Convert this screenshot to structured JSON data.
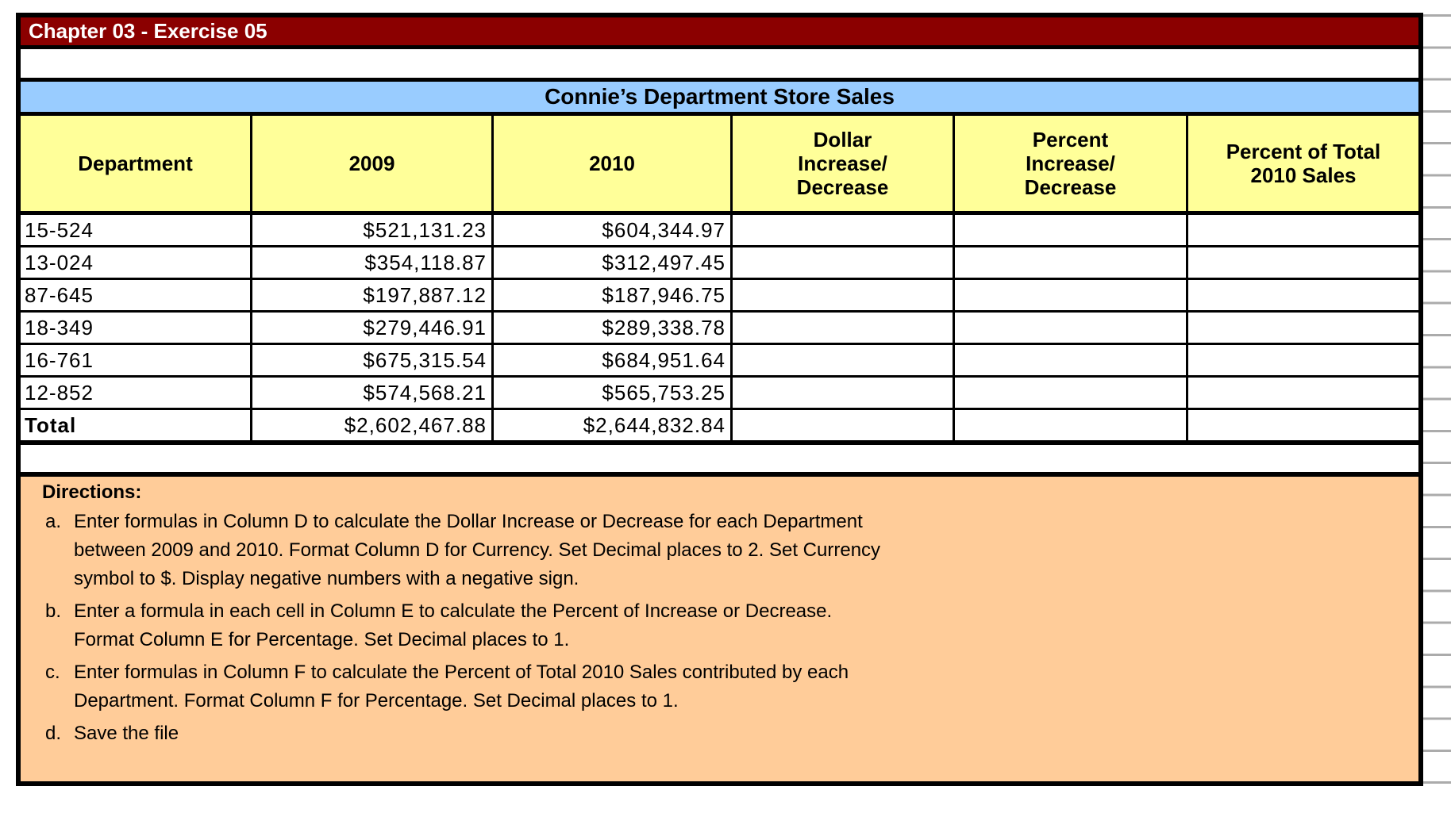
{
  "banner": {
    "exercise_title": "Chapter 03 - Exercise 05"
  },
  "table": {
    "title": "Connie’s Department Store Sales",
    "headers": [
      "Department",
      "2009",
      "2010",
      "Dollar\nIncrease/\nDecrease",
      "Percent\nIncrease/\nDecrease",
      "Percent of Total\n2010 Sales"
    ],
    "rows": [
      [
        "15-524",
        "$521,131.23",
        "$604,344.97",
        "",
        "",
        ""
      ],
      [
        "13-024",
        "$354,118.87",
        "$312,497.45",
        "",
        "",
        ""
      ],
      [
        "87-645",
        "$197,887.12",
        "$187,946.75",
        "",
        "",
        ""
      ],
      [
        "18-349",
        "$279,446.91",
        "$289,338.78",
        "",
        "",
        ""
      ],
      [
        "16-761",
        "$675,315.54",
        "$684,951.64",
        "",
        "",
        ""
      ],
      [
        "12-852",
        "$574,568.21",
        "$565,753.25",
        "",
        "",
        ""
      ],
      [
        "Total",
        "$2,602,467.88",
        "$2,644,832.84",
        "",
        "",
        ""
      ]
    ]
  },
  "directions": {
    "heading": "Directions:",
    "items": [
      {
        "marker": "a.",
        "text": "Enter formulas in Column D to calculate the Dollar Increase or Decrease for each Department\nbetween 2009 and 2010. Format Column D for Currency. Set Decimal places to 2. Set Currency\nsymbol to $. Display negative numbers with a negative sign."
      },
      {
        "marker": "b.",
        "text": "Enter a formula in each cell in Column E to calculate the Percent of Increase or Decrease.\nFormat Column E for Percentage. Set Decimal places to 1."
      },
      {
        "marker": "c.",
        "text": "Enter formulas in Column F to calculate the Percent of Total 2010 Sales contributed by each\nDepartment. Format Column F for Percentage. Set Decimal places to 1."
      },
      {
        "marker": "d.",
        "text": "Save the file"
      }
    ]
  },
  "colors": {
    "banner_red": "#8B0000",
    "banner_blue": "#99CCFF",
    "header_yellow": "#FFFF99",
    "directions_orange": "#FFCC99",
    "gridline_gray": "#ABABAB",
    "border_black": "#000000"
  }
}
